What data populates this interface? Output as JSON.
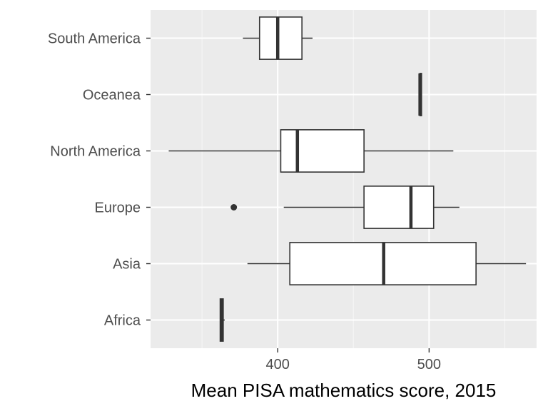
{
  "chart_data": {
    "type": "boxplot",
    "orientation": "horizontal",
    "title": "",
    "xlabel": "Mean PISA mathematics score, 2015",
    "ylabel": "",
    "xlim": [
      316,
      571
    ],
    "x_ticks": [
      400,
      500
    ],
    "x_tick_labels": [
      "400",
      "500"
    ],
    "grid": true,
    "legend": "none",
    "categories": [
      "Africa",
      "Asia",
      "Europe",
      "North America",
      "Oceanea",
      "South America"
    ],
    "boxes": [
      {
        "category": "Africa",
        "whisker_low": 362,
        "q1": 362,
        "median": 363,
        "q3": 364,
        "whisker_high": 365,
        "outliers": []
      },
      {
        "category": "Asia",
        "whisker_low": 380,
        "q1": 408,
        "median": 470,
        "q3": 531,
        "whisker_high": 564,
        "outliers": []
      },
      {
        "category": "Europe",
        "whisker_low": 404,
        "q1": 457,
        "median": 488,
        "q3": 503,
        "whisker_high": 520,
        "outliers": [
          371
        ]
      },
      {
        "category": "North America",
        "whisker_low": 328,
        "q1": 402,
        "median": 413,
        "q3": 457,
        "whisker_high": 516,
        "outliers": []
      },
      {
        "category": "Oceanea",
        "whisker_low": 494,
        "q1": 494,
        "median": 494,
        "q3": 495,
        "whisker_high": 495,
        "outliers": []
      },
      {
        "category": "South America",
        "whisker_low": 377,
        "q1": 388,
        "median": 400,
        "q3": 416,
        "whisker_high": 423,
        "outliers": []
      }
    ]
  },
  "colors": {
    "panel_background": "#ebebeb",
    "grid_major": "#ffffff",
    "grid_minor": "#f5f5f5",
    "box_fill": "#ffffff",
    "box_stroke": "#333333",
    "tick_text": "#4d4d4d",
    "axis_title": "#000000"
  }
}
